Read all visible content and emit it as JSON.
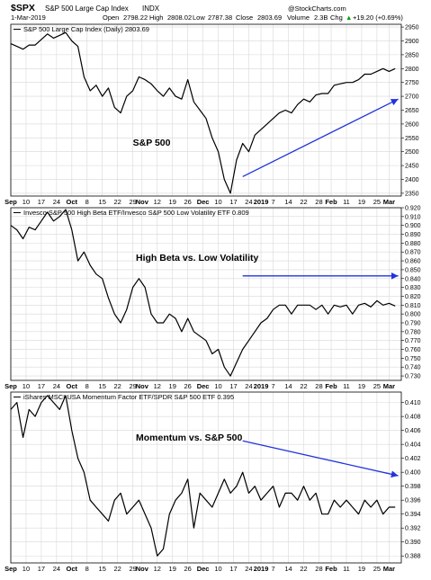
{
  "header": {
    "symbol": "$SPX",
    "name": "S&P 500 Large Cap Index",
    "exchange": "INDX",
    "date": "1-Mar-2019",
    "open_label": "Open",
    "open": "2798.22",
    "high_label": "High",
    "high": "2808.02",
    "low_label": "Low",
    "low": "2787.38",
    "close_label": "Close",
    "close": "2803.69",
    "volume_label": "Volume",
    "volume": "2.3B",
    "chg_label": "Chg",
    "chg": "+19.20 (+0.69%)",
    "chg_arrow": "▲",
    "credit": "@StockCharts.com"
  },
  "colors": {
    "price_line": "#000000",
    "arrow": "#2233dd",
    "grid": "#d8d8d8",
    "frame": "#000000",
    "chg_positive": "#00a000"
  },
  "chart_data": [
    {
      "type": "line",
      "legend": "S&P 500 Large Cap Index (Daily) 2803.69",
      "annotation": "S&P 500",
      "ylim": [
        2340,
        2960
      ],
      "yticks": [
        "2950",
        "2900",
        "2850",
        "2800",
        "2750",
        "2700",
        "2650",
        "2600",
        "2550",
        "2500",
        "2450",
        "2400",
        "2350"
      ],
      "x": [
        0,
        2,
        4,
        6,
        8,
        10,
        12,
        14,
        16,
        18,
        20,
        22,
        24,
        26,
        28,
        30,
        32,
        34,
        36,
        38,
        40,
        42,
        44,
        46,
        48,
        50,
        52,
        54,
        56,
        58,
        60,
        62,
        64,
        66,
        68,
        70,
        72,
        74,
        76,
        78,
        80,
        82,
        84,
        86,
        88,
        90,
        92,
        94,
        96,
        98,
        100,
        102,
        104,
        106,
        108,
        110,
        112,
        114,
        116,
        118,
        120,
        122,
        124,
        126
      ],
      "values": [
        2890,
        2880,
        2870,
        2885,
        2885,
        2905,
        2925,
        2910,
        2920,
        2930,
        2900,
        2880,
        2770,
        2720,
        2740,
        2700,
        2730,
        2660,
        2640,
        2700,
        2720,
        2770,
        2760,
        2745,
        2720,
        2700,
        2730,
        2700,
        2690,
        2760,
        2680,
        2650,
        2620,
        2550,
        2500,
        2400,
        2350,
        2470,
        2530,
        2500,
        2560,
        2580,
        2600,
        2620,
        2640,
        2650,
        2640,
        2670,
        2690,
        2680,
        2705,
        2710,
        2710,
        2740,
        2745,
        2750,
        2750,
        2760,
        2780,
        2780,
        2790,
        2800,
        2790,
        2800
      ],
      "arrow": {
        "from": [
          76,
          2410
        ],
        "to": [
          127,
          2690
        ]
      }
    },
    {
      "type": "line",
      "legend": "Invesco S&P 500 High Beta ETF/Invesco S&P 500 Low Volatility ETF 0.809",
      "annotation": "High Beta vs. Low Volatility",
      "ylim": [
        0.725,
        0.92
      ],
      "yticks": [
        "0.920",
        "0.910",
        "0.900",
        "0.890",
        "0.880",
        "0.870",
        "0.860",
        "0.850",
        "0.840",
        "0.830",
        "0.820",
        "0.810",
        "0.800",
        "0.790",
        "0.780",
        "0.770",
        "0.760",
        "0.750",
        "0.740",
        "0.730"
      ],
      "x": [
        0,
        2,
        4,
        6,
        8,
        10,
        12,
        14,
        16,
        18,
        20,
        22,
        24,
        26,
        28,
        30,
        32,
        34,
        36,
        38,
        40,
        42,
        44,
        46,
        48,
        50,
        52,
        54,
        56,
        58,
        60,
        62,
        64,
        66,
        68,
        70,
        72,
        74,
        76,
        78,
        80,
        82,
        84,
        86,
        88,
        90,
        92,
        94,
        96,
        98,
        100,
        102,
        104,
        106,
        108,
        110,
        112,
        114,
        116,
        118,
        120,
        122,
        124,
        126
      ],
      "values": [
        0.9,
        0.895,
        0.885,
        0.898,
        0.895,
        0.905,
        0.915,
        0.905,
        0.91,
        0.918,
        0.895,
        0.86,
        0.87,
        0.855,
        0.845,
        0.84,
        0.818,
        0.8,
        0.79,
        0.805,
        0.83,
        0.84,
        0.83,
        0.8,
        0.79,
        0.79,
        0.8,
        0.795,
        0.78,
        0.795,
        0.78,
        0.775,
        0.77,
        0.755,
        0.76,
        0.74,
        0.73,
        0.745,
        0.76,
        0.77,
        0.78,
        0.79,
        0.795,
        0.805,
        0.81,
        0.81,
        0.8,
        0.81,
        0.81,
        0.81,
        0.805,
        0.81,
        0.8,
        0.81,
        0.808,
        0.81,
        0.8,
        0.81,
        0.812,
        0.808,
        0.815,
        0.81,
        0.812,
        0.809
      ],
      "arrow": {
        "from": [
          76,
          0.843
        ],
        "to": [
          127,
          0.843
        ]
      }
    },
    {
      "type": "line",
      "legend": "iShares MSCI USA Momentum Factor ETF/SPDR S&P 500 ETF 0.395",
      "annotation": "Momentum vs. S&P 500",
      "ylim": [
        0.387,
        0.4115
      ],
      "yticks": [
        "0.410",
        "0.408",
        "0.406",
        "0.404",
        "0.402",
        "0.400",
        "0.398",
        "0.396",
        "0.394",
        "0.392",
        "0.390",
        "0.388"
      ],
      "x": [
        0,
        2,
        4,
        6,
        8,
        10,
        12,
        14,
        16,
        18,
        20,
        22,
        24,
        26,
        28,
        30,
        32,
        34,
        36,
        38,
        40,
        42,
        44,
        46,
        48,
        50,
        52,
        54,
        56,
        58,
        60,
        62,
        64,
        66,
        68,
        70,
        72,
        74,
        76,
        78,
        80,
        82,
        84,
        86,
        88,
        90,
        92,
        94,
        96,
        98,
        100,
        102,
        104,
        106,
        108,
        110,
        112,
        114,
        116,
        118,
        120,
        122,
        124,
        126
      ],
      "values": [
        0.409,
        0.41,
        0.405,
        0.409,
        0.408,
        0.41,
        0.411,
        0.41,
        0.409,
        0.411,
        0.406,
        0.402,
        0.4,
        0.396,
        0.395,
        0.394,
        0.393,
        0.396,
        0.397,
        0.394,
        0.395,
        0.396,
        0.394,
        0.392,
        0.388,
        0.389,
        0.394,
        0.396,
        0.397,
        0.399,
        0.392,
        0.397,
        0.396,
        0.395,
        0.397,
        0.399,
        0.397,
        0.398,
        0.4,
        0.397,
        0.398,
        0.396,
        0.397,
        0.398,
        0.395,
        0.397,
        0.397,
        0.396,
        0.398,
        0.396,
        0.397,
        0.394,
        0.394,
        0.396,
        0.395,
        0.396,
        0.395,
        0.394,
        0.396,
        0.395,
        0.396,
        0.394,
        0.395,
        0.395
      ],
      "arrow": {
        "from": [
          76,
          0.4045
        ],
        "to": [
          127,
          0.3995
        ]
      }
    }
  ],
  "x_axis": {
    "range": [
      0,
      128
    ],
    "ticks": [
      {
        "x": 0,
        "label": "Sep"
      },
      {
        "x": 5,
        "label": "10"
      },
      {
        "x": 10,
        "label": "17"
      },
      {
        "x": 15,
        "label": "24"
      },
      {
        "x": 20,
        "label": "Oct"
      },
      {
        "x": 25,
        "label": "8"
      },
      {
        "x": 30,
        "label": "15"
      },
      {
        "x": 35,
        "label": "22"
      },
      {
        "x": 40,
        "label": "29"
      },
      {
        "x": 43,
        "label": "Nov"
      },
      {
        "x": 48,
        "label": "12"
      },
      {
        "x": 53,
        "label": "19"
      },
      {
        "x": 58,
        "label": "26"
      },
      {
        "x": 63,
        "label": "Dec"
      },
      {
        "x": 68,
        "label": "10"
      },
      {
        "x": 73,
        "label": "17"
      },
      {
        "x": 78,
        "label": "24"
      },
      {
        "x": 82,
        "label": "2019"
      },
      {
        "x": 86,
        "label": "7"
      },
      {
        "x": 91,
        "label": "14"
      },
      {
        "x": 96,
        "label": "22"
      },
      {
        "x": 101,
        "label": "28"
      },
      {
        "x": 105,
        "label": "Feb"
      },
      {
        "x": 110,
        "label": "11"
      },
      {
        "x": 115,
        "label": "19"
      },
      {
        "x": 120,
        "label": "25"
      },
      {
        "x": 124,
        "label": "Mar"
      }
    ],
    "major": [
      "Sep",
      "Oct",
      "Nov",
      "Dec",
      "2019",
      "Feb",
      "Mar"
    ]
  }
}
